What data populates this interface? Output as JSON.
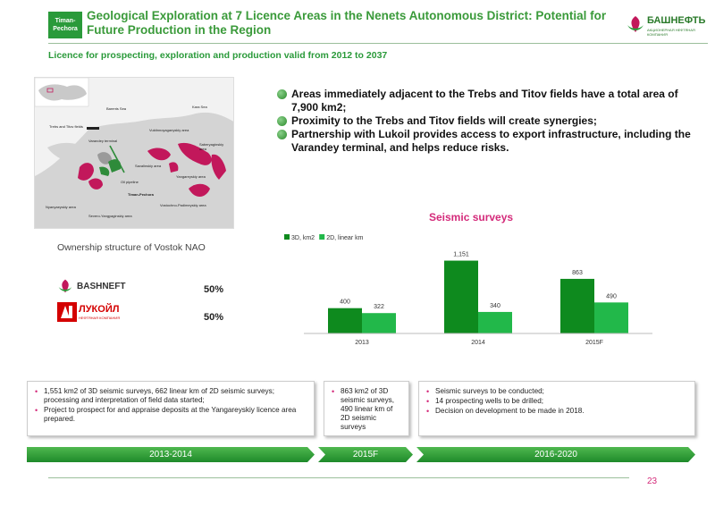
{
  "header": {
    "region_badge": "Timan-Pechora",
    "title": "Geological Exploration at 7 Licence Areas in the Nenets Autonomous District: Potential for Future Production in the Region",
    "logo_text": "БАШНЕФТЬ",
    "logo_subtext": "АКЦИОНЕРНАЯ НЕФТЯНАЯ КОМПАНИЯ"
  },
  "subtitle": "Licence for prospecting, exploration and production valid from 2012 to 2037",
  "map": {
    "labels": {
      "barents": "Barents Sea",
      "kara": "Kara Sea",
      "trebs": "Trebs and Titov fields",
      "varandey": "Varandey terminal",
      "vuktinnoyagan": "Vuktinnoyaganyskiy area",
      "saberyagin": "Saberyaginskiy area",
      "savalinskiy": "Savalinskiy area",
      "oil_pipeline": "Oil pipeline",
      "yangareyskiy": "Yangareyskiy area",
      "timan": "Timan-Pechora",
      "vostochno": "Vostochno-Padimeyskiy area",
      "nyanyaeyskiy": "Nyanyaeyskiy area",
      "severo": "Severo-Yangyaginskiy area"
    },
    "colors": {
      "license_area": "#c2185b",
      "fields": "#2e8b3a",
      "land": "#d8d8d8",
      "sea": "#f4f4f4"
    }
  },
  "bullets": [
    "Areas immediately adjacent to the Trebs and Titov fields have a total area of 7,900 km2;",
    "Proximity to the Trebs and Titov fields will create synergies;",
    "Partnership with Lukoil provides access to export infrastructure, including the Varandey terminal, and helps reduce risks."
  ],
  "ownership": {
    "title": "Ownership structure of Vostok NAO",
    "bashneft_name": "BASHNEFT",
    "lukoil_name": "ЛУКОЙЛ",
    "lukoil_sub": "НЕФТЯНАЯ КОМПАНИЯ",
    "bashneft_pct": "50%",
    "lukoil_pct": "50%"
  },
  "chart_data": {
    "type": "bar",
    "title": "Seismic surveys",
    "categories": [
      "2013",
      "2014",
      "2015F"
    ],
    "series": [
      {
        "name": "3D, km2",
        "values": [
          400,
          1151,
          863
        ],
        "labels": [
          "400",
          "1,151",
          "863"
        ],
        "color": "#0e8a1e"
      },
      {
        "name": "2D, linear km",
        "values": [
          322,
          340,
          490
        ],
        "labels": [
          "322",
          "340",
          "490"
        ],
        "color": "#22b84a"
      }
    ],
    "ylim": [
      0,
      1300
    ],
    "legend": "top-left",
    "grid": false
  },
  "boxes": {
    "box1": [
      "1,551 km2 of 3D seismic surveys, 662 linear km of 2D seismic surveys; processing and interpretation of field data started;",
      "Project to prospect for and appraise deposits at the Yangareyskiy licence area prepared."
    ],
    "box2": [
      "863 km2 of 3D seismic surveys, 490 linear km of 2D seismic surveys"
    ],
    "box3": [
      "Seismic surveys to be conducted;",
      "14 prospecting wells to be drilled;",
      "Decision on development to be made in 2018."
    ]
  },
  "timeline": [
    "2013-2014",
    "2015F",
    "2016-2020"
  ],
  "page_number": "23"
}
